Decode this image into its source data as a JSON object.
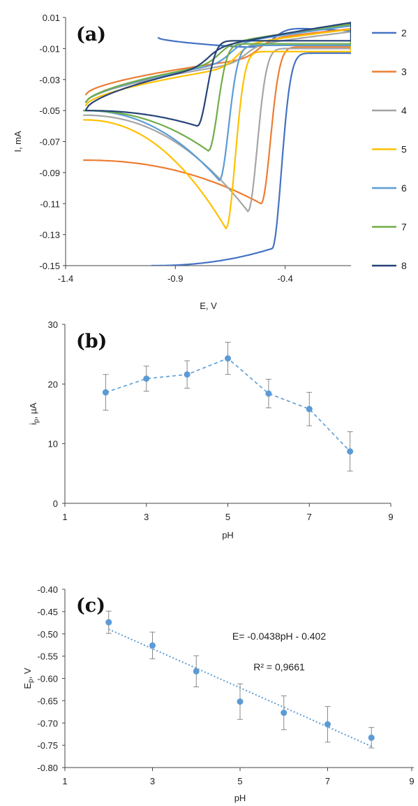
{
  "chart_data": [
    {
      "type": "line",
      "panel_label": "(a)",
      "xlabel": "E, V",
      "ylabel": "I, mA",
      "xlim": [
        -1.4,
        -0.1
      ],
      "ylim": [
        -0.15,
        0.01
      ],
      "xticks": [
        "-1.4",
        "-0.9",
        "-0.4"
      ],
      "yticks": [
        "0.01",
        "-0.01",
        "-0.03",
        "-0.05",
        "-0.07",
        "-0.09",
        "-0.11",
        "-0.13",
        "-0.15"
      ],
      "grid": false,
      "legend_position": "right",
      "series": [
        {
          "name": "2",
          "color": "#4472c4",
          "ox_x": -0.98,
          "ox_i": -0.003,
          "e_start": -1.01,
          "i_start": -0.15,
          "peak_e": -0.46,
          "peak_i": -0.139,
          "lower_e0": -0.98,
          "lower_i0": -0.012,
          "lower_e1": -0.35,
          "lower_i1": -0.013,
          "upper_i1": 0.003
        },
        {
          "name": "3",
          "color": "#ed7d31",
          "ox_x": -1.31,
          "ox_i": -0.04,
          "e_start": -1.32,
          "i_start": -0.082,
          "peak_e": -0.51,
          "peak_i": -0.11,
          "lower_e0": -1.0,
          "lower_i0": -0.025,
          "lower_e1": -0.42,
          "lower_i1": -0.009,
          "upper_i1": 0.004
        },
        {
          "name": "4",
          "color": "#a5a5a5",
          "ox_x": -1.31,
          "ox_i": -0.045,
          "e_start": -1.32,
          "i_start": -0.053,
          "peak_e": -0.57,
          "peak_i": -0.115,
          "lower_e0": -1.0,
          "lower_i0": -0.024,
          "lower_e1": -0.48,
          "lower_i1": -0.01,
          "upper_i1": 0.002
        },
        {
          "name": "5",
          "color": "#ffc000",
          "ox_x": -1.31,
          "ox_i": -0.047,
          "e_start": -1.32,
          "i_start": -0.056,
          "peak_e": -0.67,
          "peak_i": -0.126,
          "lower_e0": -1.0,
          "lower_i0": -0.028,
          "lower_e1": -0.52,
          "lower_i1": -0.012,
          "upper_i1": 0.004
        },
        {
          "name": "6",
          "color": "#5b9bd5",
          "ox_x": -1.31,
          "ox_i": -0.045,
          "e_start": -1.32,
          "i_start": -0.05,
          "peak_e": -0.7,
          "peak_i": -0.095,
          "lower_e0": -1.0,
          "lower_i0": -0.022,
          "lower_e1": -0.55,
          "lower_i1": -0.008,
          "upper_i1": 0.006
        },
        {
          "name": "7",
          "color": "#70ad47",
          "ox_x": -1.31,
          "ox_i": -0.045,
          "e_start": -1.32,
          "i_start": -0.05,
          "peak_e": -0.75,
          "peak_i": -0.076,
          "lower_e0": -1.0,
          "lower_i0": -0.021,
          "lower_e1": -0.6,
          "lower_i1": -0.007,
          "upper_i1": 0.007
        },
        {
          "name": "8",
          "color": "#264478",
          "ox_x": -1.31,
          "ox_i": -0.05,
          "e_start": -1.31,
          "i_start": -0.05,
          "peak_e": -0.8,
          "peak_i": -0.06,
          "lower_e0": -1.0,
          "lower_i0": -0.02,
          "lower_e1": -0.65,
          "lower_i1": -0.005,
          "upper_i1": 0.008
        }
      ]
    },
    {
      "type": "scatter",
      "panel_label": "(b)",
      "xlabel": "pH",
      "ylabel": "i",
      "ylabel_sub": "p",
      "ylabel_tail": ", µA",
      "xlim": [
        1,
        9
      ],
      "ylim": [
        0,
        30
      ],
      "xticks": [
        "1",
        "3",
        "5",
        "7",
        "9"
      ],
      "yticks": [
        "0",
        "10",
        "20",
        "30"
      ],
      "grid": false,
      "marker_color": "#5b9bd5",
      "x": [
        2,
        3,
        4,
        5,
        6,
        7,
        8
      ],
      "y": [
        18.6,
        20.9,
        21.6,
        24.3,
        18.4,
        15.8,
        8.7
      ],
      "error": [
        3.0,
        2.1,
        2.3,
        2.7,
        2.4,
        2.8,
        3.3
      ]
    },
    {
      "type": "scatter",
      "panel_label": "(c)",
      "xlabel": "pH",
      "ylabel": "E",
      "ylabel_sub": "p",
      "ylabel_tail": ", V",
      "xlim": [
        1,
        9
      ],
      "ylim": [
        -0.8,
        -0.4
      ],
      "xticks": [
        "1",
        "3",
        "5",
        "7",
        "9"
      ],
      "yticks": [
        "-0.40",
        "-0.45",
        "-0.50",
        "-0.55",
        "-0.60",
        "-0.65",
        "-0.70",
        "-0.75",
        "-0.80"
      ],
      "grid": false,
      "marker_color": "#5b9bd5",
      "x": [
        2,
        3,
        4,
        5,
        6,
        7,
        8
      ],
      "y": [
        -0.474,
        -0.526,
        -0.584,
        -0.652,
        -0.677,
        -0.703,
        -0.733
      ],
      "error": [
        0.025,
        0.03,
        0.035,
        0.04,
        0.038,
        0.04,
        0.023
      ],
      "fit": {
        "slope": -0.0438,
        "intercept": -0.402,
        "equation": "E= -0.0438pH - 0.402",
        "r2": "R² = 0,9661"
      }
    }
  ]
}
